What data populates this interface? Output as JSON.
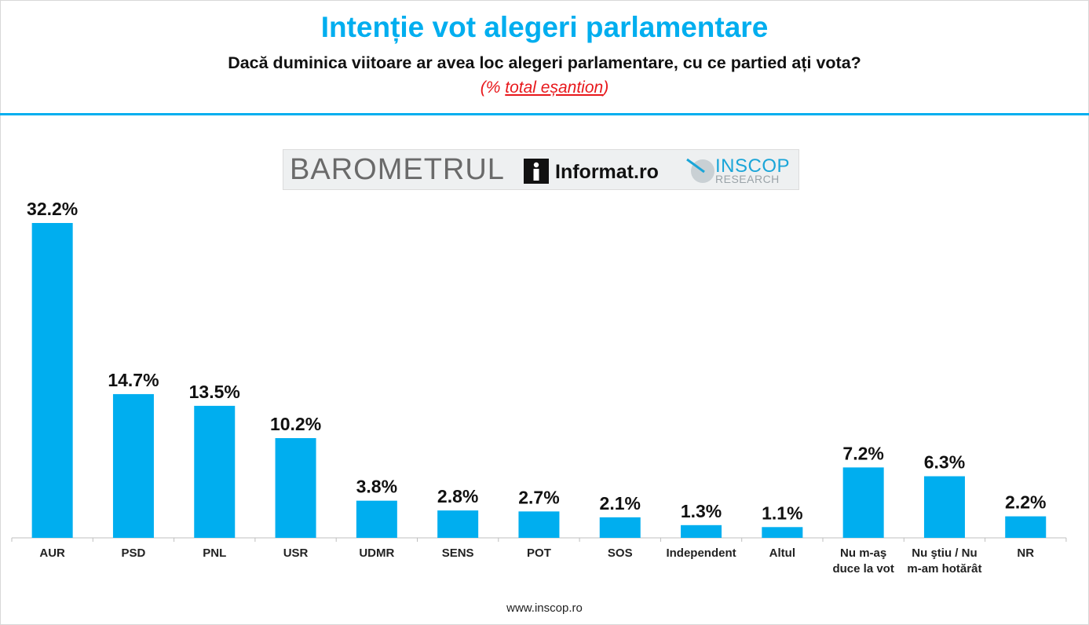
{
  "header": {
    "title": "Intenție vot alegeri parlamentare",
    "subtitle": "Dacă duminica viitoare ar avea loc alegeri parlamentare, cu ce partied ați vota?",
    "note_open": "(% ",
    "note_underlined": "total eșantion",
    "note_close": ")"
  },
  "logo": {
    "barometrul": "BAROMETRUL",
    "informat": "Informat.ro",
    "inscop": "INSCOP",
    "research": "RESEARCH"
  },
  "footer": {
    "url": "www.inscop.ro"
  },
  "colors": {
    "accent": "#00aeef",
    "note": "#e8181c",
    "bar": "#00aeef"
  },
  "chart_data": {
    "type": "bar",
    "title": "Intenție vot alegeri parlamentare",
    "categories": [
      "AUR",
      "PSD",
      "PNL",
      "USR",
      "UDMR",
      "SENS",
      "POT",
      "SOS",
      "Independent",
      "Altul",
      "Nu m-aş duce la vot",
      "Nu ştiu / Nu m-am hotărât",
      "NR"
    ],
    "category_lines": [
      [
        "AUR"
      ],
      [
        "PSD"
      ],
      [
        "PNL"
      ],
      [
        "USR"
      ],
      [
        "UDMR"
      ],
      [
        "SENS"
      ],
      [
        "POT"
      ],
      [
        "SOS"
      ],
      [
        "Independent"
      ],
      [
        "Altul"
      ],
      [
        "Nu m-aş",
        "duce la vot"
      ],
      [
        "Nu ştiu / Nu",
        "m-am hotărât"
      ],
      [
        "NR"
      ]
    ],
    "values": [
      32.2,
      14.7,
      13.5,
      10.2,
      3.8,
      2.8,
      2.7,
      2.1,
      1.3,
      1.1,
      7.2,
      6.3,
      2.2
    ],
    "labels": [
      "32.2%",
      "14.7%",
      "13.5%",
      "10.2%",
      "3.8%",
      "2.8%",
      "2.7%",
      "2.1%",
      "1.3%",
      "1.1%",
      "7.2%",
      "6.3%",
      "2.2%"
    ],
    "xlabel": "",
    "ylabel": "",
    "ylim": [
      0,
      33
    ],
    "grid": false,
    "legend": "none"
  }
}
